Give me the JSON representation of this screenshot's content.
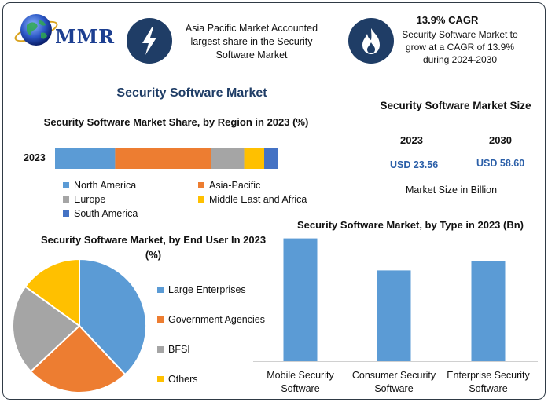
{
  "header": {
    "logo_text": "MMR",
    "info1_text": "Asia Pacific Market Accounted largest share in the Security Software Market",
    "info2_title": "13.9% CAGR",
    "info2_text": "Security Software Market to grow at a CAGR of 13.9% during 2024-2030",
    "main_title": "Security Software Market"
  },
  "colors": {
    "blue": "#5b9bd5",
    "orange": "#ed7d31",
    "gray": "#a5a5a5",
    "yellow": "#ffc000",
    "dark_blue": "#4472c4",
    "icon_bg": "#1f3d66"
  },
  "icons": [
    "globe-icon",
    "lightning-bolt-icon",
    "flame-icon"
  ],
  "market_size": {
    "title": "Security Software Market Size",
    "year_a": "2023",
    "year_b": "2030",
    "value_a": "USD 23.56",
    "value_b": "USD 58.60",
    "unit_note": "Market Size in Billion"
  },
  "chart_data": [
    {
      "type": "bar",
      "orientation": "horizontal-stacked",
      "title": "Security Software Market Share, by Region in 2023 (%)",
      "categories": [
        "2023"
      ],
      "series": [
        {
          "name": "North America",
          "values": [
            27
          ]
        },
        {
          "name": "Asia-Pacific",
          "values": [
            43
          ]
        },
        {
          "name": "Europe",
          "values": [
            15
          ]
        },
        {
          "name": "Middle East and Africa",
          "values": [
            9
          ]
        },
        {
          "name": "South America",
          "values": [
            6
          ]
        }
      ],
      "legend_position": "bottom"
    },
    {
      "type": "pie",
      "title": "Security Software Market, by End User In 2023 (%)",
      "labels": [
        "Large Enterprises",
        "Government Agencies",
        "BFSI",
        "Others"
      ],
      "values": [
        38,
        25,
        22,
        15
      ],
      "legend_position": "right"
    },
    {
      "type": "bar",
      "title": "Security Software Market, by Type in 2023 (Bn)",
      "categories": [
        "Mobile Security Software",
        "Consumer Security Software",
        "Enterprise Security Software"
      ],
      "values": [
        9.2,
        6.8,
        7.5
      ],
      "ylim": [
        0,
        10
      ]
    }
  ]
}
